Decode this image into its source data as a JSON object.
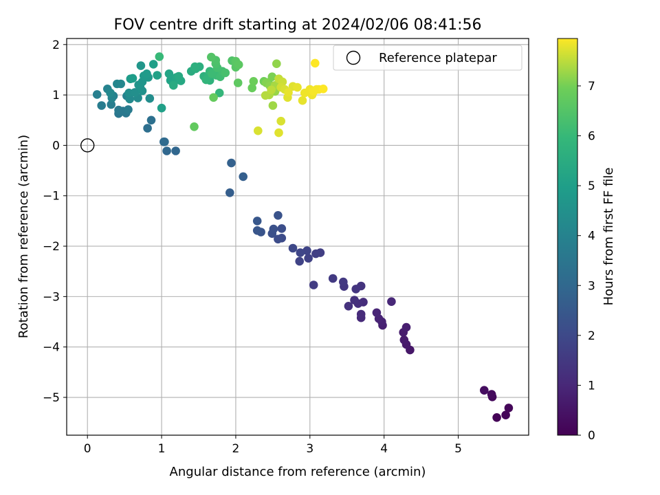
{
  "chart_data": {
    "type": "scatter",
    "title": "FOV centre drift starting at 2024/02/06 08:41:56",
    "xlabel": "Angular distance from reference (arcmin)",
    "ylabel": "Rotation from reference (arcmin)",
    "xlim": [
      -0.28,
      5.95
    ],
    "ylim": [
      -5.75,
      2.12
    ],
    "xticks": [
      0,
      1,
      2,
      3,
      4,
      5
    ],
    "yticks": [
      -5,
      -4,
      -3,
      -2,
      -1,
      0,
      1,
      2
    ],
    "grid": true,
    "legend": {
      "position": "top-right",
      "entries": [
        "Reference platepar"
      ]
    },
    "reference_point": {
      "label": "Reference platepar",
      "x": 0,
      "y": 0
    },
    "colorbar": {
      "label": "Hours from first FF file",
      "colormap": "viridis",
      "range": [
        0,
        7.95
      ],
      "ticks": [
        0,
        1,
        2,
        3,
        4,
        5,
        6,
        7
      ]
    },
    "series": [
      {
        "columns": [
          "x",
          "y",
          "hours"
        ],
        "points": [
          [
            5.52,
            -5.4,
            0.05
          ],
          [
            5.64,
            -5.35,
            0.1
          ],
          [
            5.68,
            -5.21,
            0.15
          ],
          [
            5.46,
            -4.99,
            0.2
          ],
          [
            5.45,
            -4.94,
            0.25
          ],
          [
            5.35,
            -4.86,
            0.3
          ],
          [
            4.35,
            -4.06,
            0.55
          ],
          [
            4.3,
            -3.95,
            0.6
          ],
          [
            4.27,
            -3.86,
            0.65
          ],
          [
            4.26,
            -3.71,
            0.7
          ],
          [
            4.3,
            -3.61,
            0.75
          ],
          [
            3.98,
            -3.57,
            0.8
          ],
          [
            3.97,
            -3.5,
            0.85
          ],
          [
            3.93,
            -3.44,
            0.9
          ],
          [
            3.9,
            -3.32,
            0.95
          ],
          [
            4.1,
            -3.1,
            1.0
          ],
          [
            3.69,
            -3.42,
            1.05
          ],
          [
            3.69,
            -3.35,
            1.1
          ],
          [
            3.72,
            -3.11,
            1.15
          ],
          [
            3.65,
            -3.14,
            1.2
          ],
          [
            3.6,
            -3.07,
            1.25
          ],
          [
            3.52,
            -3.19,
            1.3
          ],
          [
            3.69,
            -2.79,
            1.35
          ],
          [
            3.62,
            -2.85,
            1.4
          ],
          [
            3.46,
            -2.8,
            1.45
          ],
          [
            3.45,
            -2.71,
            1.5
          ],
          [
            3.31,
            -2.64,
            1.55
          ],
          [
            3.05,
            -2.77,
            1.6
          ],
          [
            3.14,
            -2.13,
            1.65
          ],
          [
            3.08,
            -2.15,
            1.7
          ],
          [
            2.98,
            -2.24,
            1.75
          ],
          [
            2.86,
            -2.3,
            1.8
          ],
          [
            2.96,
            -2.09,
            1.85
          ],
          [
            2.87,
            -2.13,
            1.9
          ],
          [
            2.77,
            -2.04,
            1.95
          ],
          [
            2.62,
            -1.84,
            2.05
          ],
          [
            2.57,
            -1.86,
            2.1
          ],
          [
            2.62,
            -1.65,
            2.15
          ],
          [
            2.49,
            -1.75,
            2.2
          ],
          [
            2.51,
            -1.66,
            2.25
          ],
          [
            2.57,
            -1.39,
            2.3
          ],
          [
            2.34,
            -1.72,
            2.35
          ],
          [
            2.29,
            -1.69,
            2.4
          ],
          [
            2.29,
            -1.5,
            2.45
          ],
          [
            1.92,
            -0.94,
            2.65
          ],
          [
            2.1,
            -0.62,
            2.7
          ],
          [
            1.94,
            -0.35,
            2.75
          ],
          [
            1.19,
            -0.11,
            2.95
          ],
          [
            1.07,
            -0.11,
            3.0
          ],
          [
            1.03,
            0.07,
            3.05
          ],
          [
            1.04,
            0.07,
            3.1
          ],
          [
            0.81,
            0.34,
            3.25
          ],
          [
            0.86,
            0.5,
            3.3
          ],
          [
            0.42,
            0.63,
            3.5
          ],
          [
            0.52,
            0.64,
            3.55
          ],
          [
            0.48,
            0.68,
            3.6
          ],
          [
            0.42,
            0.7,
            3.65
          ],
          [
            0.55,
            0.71,
            3.7
          ],
          [
            0.19,
            0.79,
            3.75
          ],
          [
            0.32,
            0.81,
            3.8
          ],
          [
            0.13,
            1.01,
            3.85
          ],
          [
            0.35,
            0.98,
            3.9
          ],
          [
            0.53,
            0.98,
            3.95
          ],
          [
            0.27,
            1.12,
            4.0
          ],
          [
            0.33,
            0.94,
            4.05
          ],
          [
            0.4,
            1.22,
            4.1
          ],
          [
            0.45,
            1.22,
            4.15
          ],
          [
            0.31,
            1.04,
            4.2
          ],
          [
            0.57,
            0.92,
            4.25
          ],
          [
            0.68,
            0.94,
            4.3
          ],
          [
            0.84,
            0.93,
            4.35
          ],
          [
            0.56,
            1.04,
            4.4
          ],
          [
            0.64,
            1.05,
            4.45
          ],
          [
            0.74,
            1.08,
            4.5
          ],
          [
            0.71,
            1.16,
            4.55
          ],
          [
            0.69,
            1.2,
            4.6
          ],
          [
            0.74,
            1.26,
            4.65
          ],
          [
            0.72,
            1.58,
            4.7
          ],
          [
            0.82,
            1.35,
            4.75
          ],
          [
            0.76,
            1.38,
            4.8
          ],
          [
            0.8,
            1.42,
            4.85
          ],
          [
            0.58,
            1.32,
            4.9
          ],
          [
            0.61,
            1.33,
            4.95
          ],
          [
            0.89,
            1.61,
            5.0
          ],
          [
            1.0,
            0.74,
            5.05
          ],
          [
            0.94,
            1.39,
            5.1
          ],
          [
            1.12,
            1.29,
            5.15
          ],
          [
            1.1,
            1.42,
            5.2
          ],
          [
            1.16,
            1.22,
            5.25
          ],
          [
            1.2,
            1.35,
            5.3
          ],
          [
            1.26,
            1.28,
            5.35
          ],
          [
            1.23,
            1.37,
            5.4
          ],
          [
            1.16,
            1.19,
            5.45
          ],
          [
            1.4,
            1.47,
            5.5
          ],
          [
            1.46,
            1.52,
            5.55
          ],
          [
            1.51,
            1.56,
            5.6
          ],
          [
            1.45,
            1.56,
            5.65
          ],
          [
            1.57,
            1.37,
            5.7
          ],
          [
            1.65,
            1.29,
            5.75
          ],
          [
            1.63,
            1.38,
            5.8
          ],
          [
            1.6,
            1.3,
            5.85
          ],
          [
            1.78,
            1.04,
            5.9
          ],
          [
            1.65,
            1.47,
            5.95
          ],
          [
            0.97,
            1.76,
            6.0
          ],
          [
            1.74,
            1.39,
            6.05
          ],
          [
            1.68,
            1.42,
            6.1
          ],
          [
            1.79,
            1.36,
            6.15
          ],
          [
            1.82,
            1.47,
            6.2
          ],
          [
            1.75,
            1.54,
            6.25
          ],
          [
            1.86,
            1.44,
            6.3
          ],
          [
            1.73,
            1.62,
            6.35
          ],
          [
            1.73,
            1.69,
            6.4
          ],
          [
            1.95,
            1.68,
            6.45
          ],
          [
            1.67,
            1.75,
            6.5
          ],
          [
            2.0,
            1.55,
            6.55
          ],
          [
            2.0,
            1.67,
            6.6
          ],
          [
            2.04,
            1.6,
            6.65
          ],
          [
            2.03,
            1.24,
            6.7
          ],
          [
            1.44,
            0.37,
            6.75
          ],
          [
            1.7,
            0.95,
            6.8
          ],
          [
            2.22,
            1.14,
            6.85
          ],
          [
            2.24,
            1.27,
            6.9
          ],
          [
            2.38,
            1.27,
            6.95
          ],
          [
            2.44,
            1.25,
            7.0
          ],
          [
            2.49,
            1.36,
            7.05
          ],
          [
            2.41,
            1.24,
            7.1
          ],
          [
            2.46,
            1.18,
            7.15
          ],
          [
            2.55,
            1.62,
            7.2
          ],
          [
            2.53,
            1.07,
            7.25
          ],
          [
            2.5,
            0.79,
            7.3
          ],
          [
            2.53,
            1.19,
            7.35
          ],
          [
            2.45,
            1.0,
            7.4
          ],
          [
            2.4,
            0.99,
            7.45
          ],
          [
            2.48,
            1.1,
            7.5
          ],
          [
            2.58,
            1.32,
            7.55
          ],
          [
            2.63,
            1.26,
            7.6
          ],
          [
            2.61,
            1.15,
            7.65
          ],
          [
            2.66,
            1.11,
            7.7
          ],
          [
            2.61,
            0.48,
            7.7
          ],
          [
            2.3,
            0.29,
            7.7
          ],
          [
            2.58,
            0.25,
            7.75
          ],
          [
            2.7,
            0.95,
            7.75
          ],
          [
            2.77,
            1.17,
            7.75
          ],
          [
            2.71,
            1.05,
            7.8
          ],
          [
            2.83,
            1.15,
            7.8
          ],
          [
            2.9,
            0.89,
            7.8
          ],
          [
            2.93,
            1.04,
            7.85
          ],
          [
            3.0,
            1.11,
            7.85
          ],
          [
            3.03,
            1.0,
            7.85
          ],
          [
            3.05,
            1.07,
            7.9
          ],
          [
            3.09,
            1.11,
            7.9
          ],
          [
            3.12,
            1.11,
            7.9
          ],
          [
            3.18,
            1.12,
            7.95
          ],
          [
            3.07,
            1.63,
            7.95
          ]
        ]
      }
    ]
  }
}
